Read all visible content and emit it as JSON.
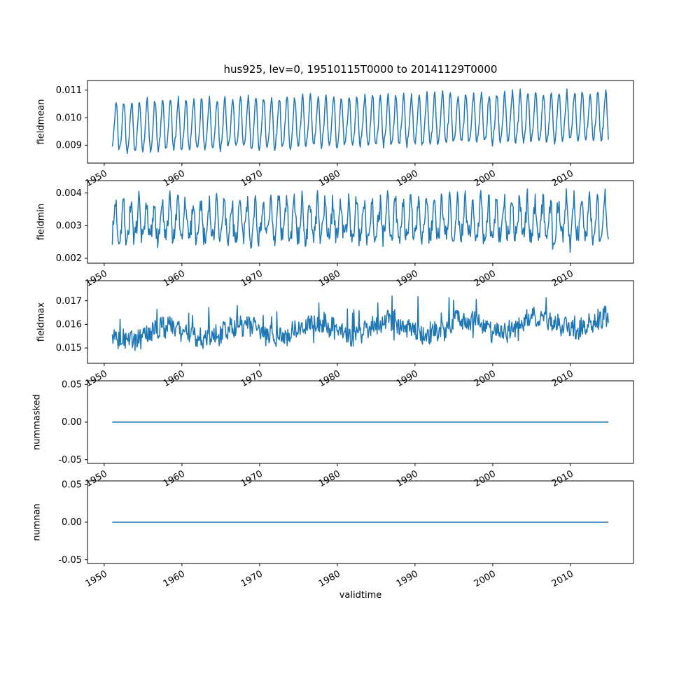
{
  "figure": {
    "title": "hus925, lev=0, 19510115T0000 to 20141129T0000",
    "xlabel": "validtime",
    "background": "#ffffff",
    "line_color": "#1f77b4",
    "axis_color": "#000000"
  },
  "chart_data": {
    "type": "line",
    "title": "hus925, lev=0, 19510115T0000 to 20141129T0000",
    "xlabel": "validtime",
    "grid": false,
    "legend": false,
    "x_start": 1951.042,
    "x_end": 2014.91,
    "points_per_year": 12,
    "xlim": [
      1947.85,
      2018.11
    ],
    "xticks": {
      "values": [
        1950,
        1960,
        1970,
        1980,
        1990,
        2000,
        2010
      ],
      "labels": [
        "1950",
        "1960",
        "1970",
        "1980",
        "1990",
        "2000",
        "2010"
      ],
      "rotation_deg": 30
    },
    "subplots": [
      {
        "name": "fieldmean",
        "ylabel": "fieldmean",
        "ylim": [
          0.00835,
          0.01135
        ],
        "yticks": {
          "values": [
            0.009,
            0.01,
            0.011
          ],
          "labels": [
            "0.009",
            "0.010",
            "0.011"
          ]
        },
        "approx_min": 0.0085,
        "approx_max": 0.0112,
        "pattern": "dense annual oscillation with slight upward trend",
        "series": {
          "seed": 42,
          "base": 0.00962,
          "trend": 0.00038,
          "seasonal_amp": 0.00086,
          "phase": -1.6,
          "harmonic2_amp": 0.00016,
          "phase2": 0.6,
          "noise_amp": 0.00013,
          "clip": [
            0.00842,
            0.01132
          ]
        }
      },
      {
        "name": "fieldmin",
        "ylabel": "fieldmin",
        "ylim": [
          0.00185,
          0.00438
        ],
        "yticks": {
          "values": [
            0.002,
            0.003,
            0.004
          ],
          "labels": [
            "0.002",
            "0.003",
            "0.004"
          ]
        },
        "approx_min": 0.0019,
        "approx_max": 0.0042,
        "pattern": "noisy annual oscillation",
        "series": {
          "seed": 7,
          "base": 0.00308,
          "trend": 8e-05,
          "seasonal_amp": 0.00055,
          "phase": -1.2,
          "harmonic2_amp": 0.00012,
          "phase2": 1.8,
          "noise_amp": 0.00032,
          "dip_prob": 0.012,
          "dip_amp": 0.0009,
          "clip": [
            0.00188,
            0.00432
          ]
        }
      },
      {
        "name": "fieldmax",
        "ylabel": "fieldmax",
        "ylim": [
          0.01435,
          0.01785
        ],
        "yticks": {
          "values": [
            0.015,
            0.016,
            0.017
          ],
          "labels": [
            "0.015",
            "0.016",
            "0.017"
          ]
        },
        "approx_min": 0.0145,
        "approx_max": 0.0176,
        "pattern": "irregular noise band with upward spikes and slight upward trend",
        "series": {
          "seed": 13,
          "base": 0.01558,
          "trend": 0.00048,
          "seasonal_amp": 0.00012,
          "phase": -0.8,
          "slow_amp": 0.00028,
          "slow_period": 9.5,
          "slow_phase": 0.8,
          "noise_amp": 0.00042,
          "spike_prob": 0.055,
          "spike_amp": 0.0013,
          "dip_prob": 0.02,
          "dip_amp": 0.0009,
          "clip": [
            0.01438,
            0.01772
          ]
        }
      },
      {
        "name": "nummasked",
        "ylabel": "nummasked",
        "ylim": [
          -0.055,
          0.055
        ],
        "yticks": {
          "values": [
            -0.05,
            0.0,
            0.05
          ],
          "labels": [
            "-0.05",
            "0.00",
            "0.05"
          ]
        },
        "approx_min": 0.0,
        "approx_max": 0.0,
        "pattern": "constant zero line",
        "series": {
          "seed": 1,
          "base": 0.0
        }
      },
      {
        "name": "numnan",
        "ylabel": "numnan",
        "ylim": [
          -0.055,
          0.055
        ],
        "yticks": {
          "values": [
            -0.05,
            0.0,
            0.05
          ],
          "labels": [
            "-0.05",
            "0.00",
            "0.05"
          ]
        },
        "approx_min": 0.0,
        "approx_max": 0.0,
        "pattern": "constant zero line",
        "series": {
          "seed": 2,
          "base": 0.0
        }
      }
    ]
  }
}
